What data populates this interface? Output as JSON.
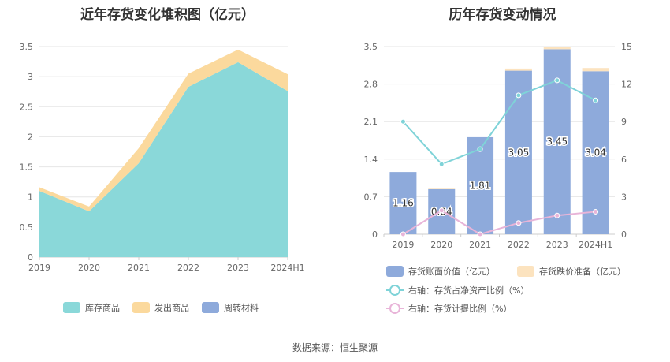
{
  "source_text": "数据来源：恒生聚源",
  "chart_data": [
    {
      "type": "area",
      "stacked": true,
      "title": "近年存货变化堆积图（亿元）",
      "categories": [
        "2019",
        "2020",
        "2021",
        "2022",
        "2023",
        "2024H1"
      ],
      "y_ticks": [
        "0",
        "0.5",
        "1",
        "1.5",
        "2",
        "2.5",
        "3",
        "3.5"
      ],
      "ylim": [
        0,
        3.5
      ],
      "grid": true,
      "legend_position": "bottom",
      "series": [
        {
          "name": "库存商品",
          "color": "#8ad8d9",
          "values": [
            1.1,
            0.76,
            1.56,
            2.83,
            3.24,
            2.76
          ]
        },
        {
          "name": "发出商品",
          "color": "#fbd99d",
          "values": [
            0.06,
            0.08,
            0.25,
            0.22,
            0.21,
            0.28
          ]
        },
        {
          "name": "周转材料",
          "color": "#8eaadb",
          "values": [
            0,
            0,
            0,
            0,
            0,
            0
          ]
        }
      ]
    },
    {
      "type": "bar",
      "stacked": true,
      "title": "历年存货变动情况",
      "categories": [
        "2019",
        "2020",
        "2021",
        "2022",
        "2023",
        "2024H1"
      ],
      "left_axis": {
        "ticks": [
          "0",
          "0.7",
          "1.4",
          "2.1",
          "2.8",
          "3.5"
        ],
        "range": [
          0,
          3.5
        ]
      },
      "right_axis": {
        "ticks": [
          "0",
          "3",
          "6",
          "9",
          "12",
          "15"
        ],
        "range": [
          0,
          15
        ]
      },
      "grid": true,
      "legend_position": "bottom",
      "bar_series": [
        {
          "name": "存货账面价值（亿元）",
          "color": "#8eaadb",
          "values": [
            1.16,
            0.84,
            1.81,
            3.05,
            3.45,
            3.04
          ],
          "labels": [
            "1.16",
            "0.84",
            "1.81",
            "3.05",
            "3.45",
            "3.04"
          ]
        },
        {
          "name": "存货跌价准备（亿元）",
          "color": "#fce3bf",
          "values": [
            0,
            0.01,
            0,
            0.04,
            0.05,
            0.06
          ]
        }
      ],
      "line_series": [
        {
          "name": "右轴：存货占净资产比例（%）",
          "color": "#7fd3d8",
          "axis": "right",
          "values": [
            9.0,
            5.6,
            6.8,
            11.1,
            12.3,
            10.7
          ]
        },
        {
          "name": "右轴：存货计提比例（%）",
          "color": "#e8b4d8",
          "axis": "right",
          "values": [
            0.0,
            1.9,
            0.0,
            0.9,
            1.5,
            1.8
          ]
        }
      ]
    }
  ]
}
